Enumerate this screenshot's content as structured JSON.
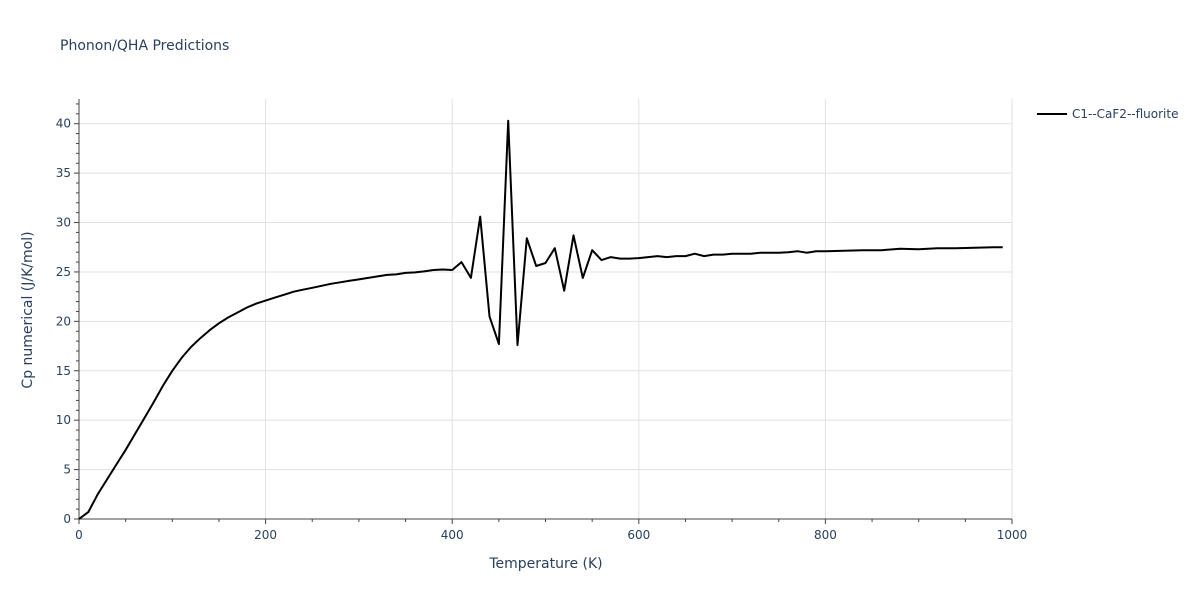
{
  "chart_data": {
    "type": "line",
    "title": "Phonon/QHA Predictions",
    "xlabel": "Temperature (K)",
    "ylabel": "Cp numerical (J/K/mol)",
    "xlim": [
      0,
      1000
    ],
    "ylim": [
      0,
      42.5
    ],
    "x_ticks": [
      0,
      200,
      400,
      600,
      800,
      1000
    ],
    "y_ticks": [
      0,
      5,
      10,
      15,
      20,
      25,
      30,
      35,
      40
    ],
    "grid": true,
    "legend_position": "top-right",
    "series": [
      {
        "name": "C1--CaF2--fluorite",
        "color": "#000000",
        "x": [
          0,
          10,
          20,
          30,
          40,
          50,
          60,
          70,
          80,
          90,
          100,
          110,
          120,
          130,
          140,
          150,
          160,
          170,
          180,
          190,
          200,
          210,
          220,
          230,
          240,
          250,
          260,
          270,
          280,
          290,
          300,
          310,
          320,
          330,
          340,
          350,
          360,
          370,
          380,
          390,
          400,
          410,
          420,
          430,
          440,
          450,
          460,
          470,
          480,
          490,
          500,
          510,
          520,
          530,
          540,
          550,
          560,
          570,
          580,
          590,
          600,
          610,
          620,
          630,
          640,
          650,
          660,
          670,
          680,
          690,
          700,
          710,
          720,
          730,
          740,
          750,
          760,
          770,
          780,
          790,
          800,
          820,
          840,
          860,
          880,
          900,
          920,
          940,
          960,
          980,
          990
        ],
        "y": [
          0,
          0.7,
          2.5,
          4.0,
          5.5,
          7.0,
          8.6,
          10.2,
          11.8,
          13.5,
          15.0,
          16.3,
          17.4,
          18.3,
          19.1,
          19.8,
          20.4,
          20.9,
          21.4,
          21.8,
          22.1,
          22.4,
          22.7,
          23.0,
          23.2,
          23.4,
          23.6,
          23.8,
          23.95,
          24.1,
          24.25,
          24.4,
          24.55,
          24.7,
          24.75,
          24.9,
          24.95,
          25.05,
          25.2,
          25.25,
          25.2,
          26.0,
          24.4,
          30.6,
          20.5,
          17.7,
          40.3,
          17.6,
          28.4,
          25.6,
          25.9,
          27.4,
          23.1,
          28.7,
          24.4,
          27.2,
          26.2,
          26.5,
          26.35,
          26.35,
          26.4,
          26.5,
          26.6,
          26.5,
          26.6,
          26.6,
          26.85,
          26.6,
          26.75,
          26.75,
          26.85,
          26.85,
          26.85,
          26.95,
          26.95,
          26.95,
          27.0,
          27.1,
          26.95,
          27.1,
          27.1,
          27.15,
          27.2,
          27.2,
          27.35,
          27.3,
          27.4,
          27.4,
          27.45,
          27.5,
          27.5
        ]
      }
    ]
  }
}
